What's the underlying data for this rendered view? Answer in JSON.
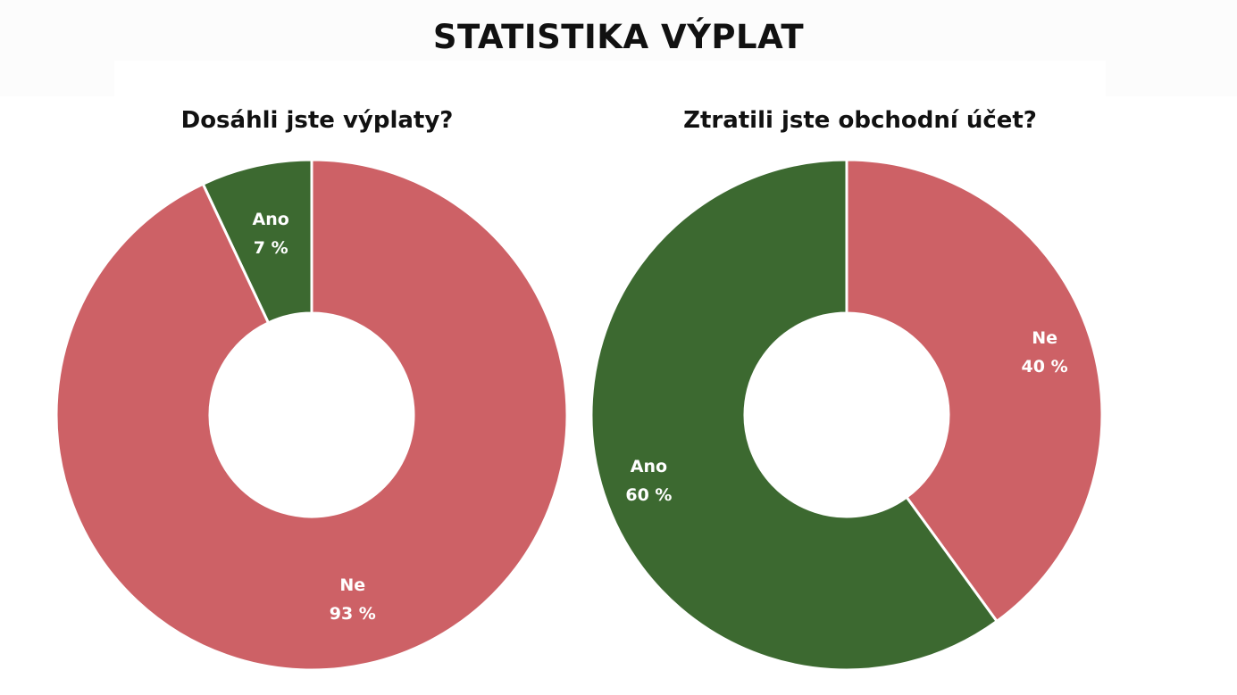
{
  "title": "STATISTIKA VÝPLAT",
  "colors": {
    "red": "#cd6166",
    "green": "#3c6930",
    "separator": "#ffffff"
  },
  "chart_data": [
    {
      "type": "pie",
      "variant": "donut",
      "title": "Dosáhli jste výplaty?",
      "slices": [
        {
          "label": "Ano",
          "value": 7,
          "value_label": "7 %",
          "color": "#3c6930"
        },
        {
          "label": "Ne",
          "value": 93,
          "value_label": "93 %",
          "color": "#cd6166"
        }
      ],
      "start_angle_deg": -25.2,
      "direction": "clockwise",
      "legend": "none"
    },
    {
      "type": "pie",
      "variant": "donut",
      "title": "Ztratili jste obchodní účet?",
      "slices": [
        {
          "label": "Ne",
          "value": 40,
          "value_label": "40 %",
          "color": "#cd6166"
        },
        {
          "label": "Ano",
          "value": 60,
          "value_label": "60 %",
          "color": "#3c6930"
        }
      ],
      "start_angle_deg": 0,
      "direction": "clockwise",
      "legend": "none"
    }
  ]
}
